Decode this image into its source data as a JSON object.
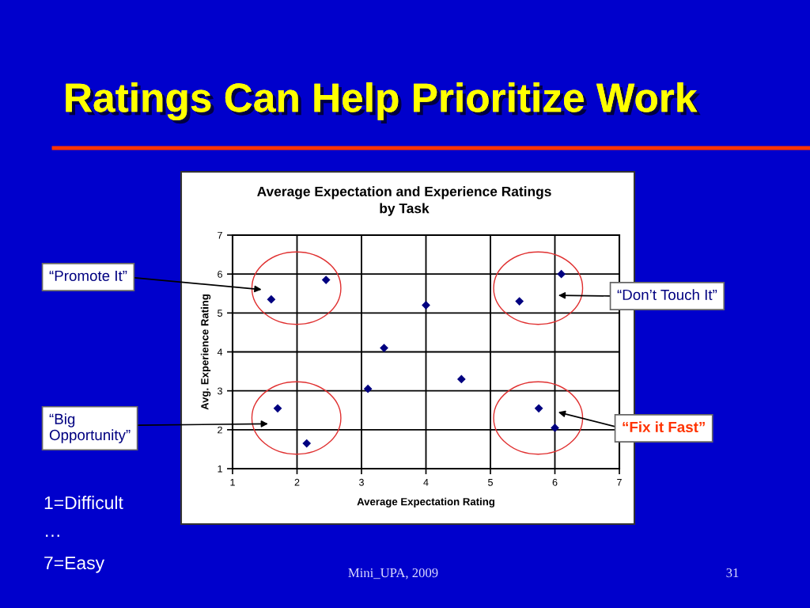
{
  "chart_data": {
    "type": "scatter",
    "title": "Ratings Can Help Prioritize Work",
    "subtitle": "Average Expectation and Experience Ratings\nby Task",
    "xlabel": "Average Expectation Rating",
    "ylabel": "Avg. Experience Rating",
    "x": [
      1.6,
      1.7,
      2.15,
      2.45,
      3.1,
      3.35,
      4.0,
      4.55,
      5.45,
      5.75,
      6.0,
      6.1
    ],
    "values": [
      5.35,
      2.55,
      1.65,
      5.85,
      3.05,
      4.1,
      5.2,
      3.3,
      5.3,
      2.55,
      2.05,
      6.0
    ],
    "color": "#000080",
    "marker": "diamond",
    "xlim": [
      1,
      7
    ],
    "ylim": [
      1,
      7
    ],
    "xticks": [
      1,
      2,
      3,
      4,
      5,
      6,
      7
    ],
    "yticks": [
      1,
      2,
      3,
      4,
      5,
      6,
      7
    ],
    "grid": true,
    "annotations": [
      "“Promote It”",
      "“Big\nOpportunity”",
      "“Don’t Touch It”",
      "“Fix it Fast”",
      "1=Difficult",
      "…",
      "7=Easy",
      "Mini_UPA, 2009",
      "31"
    ]
  }
}
